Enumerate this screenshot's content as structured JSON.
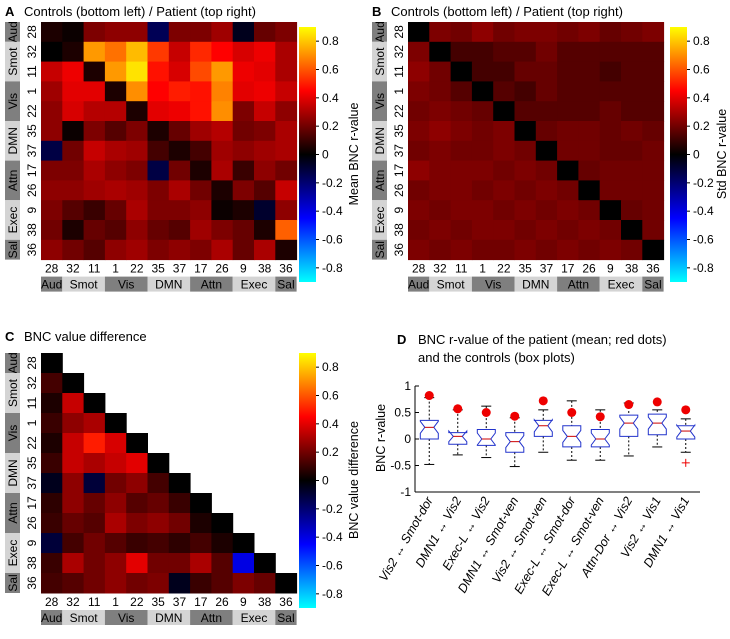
{
  "chart_data": [
    {
      "type": "heatmap",
      "panel_label": "A",
      "title": "Controls (bottom left) / Patient (top right)",
      "colorbar_label": "Mean BNC r-value",
      "colorbar_ticks": [
        "0.8",
        "0.6",
        "0.4",
        "0.2",
        "0",
        "-0.2",
        "-0.4",
        "-0.6",
        "-0.8"
      ],
      "colorbar_range": [
        -0.9,
        0.9
      ],
      "rois": [
        "28",
        "32",
        "11",
        "1",
        "22",
        "35",
        "37",
        "17",
        "26",
        "9",
        "38",
        "36"
      ],
      "groups": [
        {
          "label": "Aud",
          "start": 0,
          "end": 0,
          "shade": "dark"
        },
        {
          "label": "Smot",
          "start": 1,
          "end": 2,
          "shade": "light"
        },
        {
          "label": "Vis",
          "start": 3,
          "end": 4,
          "shade": "dark"
        },
        {
          "label": "DMN",
          "start": 5,
          "end": 6,
          "shade": "light"
        },
        {
          "label": "Attn",
          "start": 7,
          "end": 8,
          "shade": "dark"
        },
        {
          "label": "Exec",
          "start": 9,
          "end": 10,
          "shade": "light"
        },
        {
          "label": "Sal",
          "start": 11,
          "end": 11,
          "shade": "dark"
        }
      ],
      "matrix": [
        [
          0.05,
          0.02,
          0.22,
          0.25,
          0.25,
          -0.15,
          0.22,
          0.22,
          0.28,
          -0.05,
          0.18,
          0.22
        ],
        [
          0.0,
          0.05,
          0.72,
          0.65,
          0.78,
          0.55,
          0.35,
          0.52,
          0.45,
          0.38,
          0.42,
          0.3
        ],
        [
          0.35,
          0.42,
          0.05,
          0.72,
          0.85,
          0.48,
          0.38,
          0.58,
          0.72,
          0.42,
          0.4,
          0.3
        ],
        [
          0.28,
          0.4,
          0.4,
          0.05,
          0.7,
          0.45,
          0.5,
          0.48,
          0.68,
          0.4,
          0.42,
          0.35
        ],
        [
          0.25,
          0.38,
          0.32,
          0.32,
          0.05,
          0.4,
          0.42,
          0.48,
          0.7,
          0.22,
          0.35,
          0.25
        ],
        [
          0.25,
          0.02,
          0.22,
          0.15,
          0.22,
          0.05,
          0.18,
          0.28,
          0.32,
          0.2,
          0.22,
          0.3
        ],
        [
          -0.12,
          0.2,
          0.35,
          0.3,
          0.28,
          0.12,
          0.05,
          0.12,
          0.28,
          0.25,
          0.28,
          0.3
        ],
        [
          0.22,
          0.22,
          0.3,
          0.25,
          0.22,
          -0.12,
          0.2,
          0.05,
          0.3,
          0.1,
          0.25,
          0.2
        ],
        [
          0.25,
          0.25,
          0.28,
          0.3,
          0.28,
          0.22,
          0.3,
          0.2,
          0.05,
          0.22,
          0.15,
          0.35
        ],
        [
          0.22,
          0.15,
          0.1,
          0.18,
          0.3,
          0.22,
          0.22,
          0.25,
          0.02,
          0.05,
          -0.08,
          0.25
        ],
        [
          0.2,
          0.05,
          0.18,
          0.15,
          0.25,
          0.18,
          0.15,
          0.28,
          0.22,
          0.18,
          0.05,
          0.62
        ],
        [
          0.25,
          0.2,
          0.15,
          0.25,
          0.28,
          0.22,
          0.25,
          0.22,
          0.3,
          0.18,
          0.3,
          0.05
        ]
      ]
    },
    {
      "type": "heatmap",
      "panel_label": "B",
      "title": "Controls (bottom left) / Patient (top right)",
      "colorbar_label": "Std BNC r-value",
      "colorbar_ticks": [
        "0.8",
        "0.6",
        "0.4",
        "0.2",
        "0",
        "-0.2",
        "-0.4",
        "-0.6",
        "-0.8"
      ],
      "colorbar_range": [
        -0.9,
        0.9
      ],
      "rois": [
        "28",
        "32",
        "11",
        "1",
        "22",
        "35",
        "37",
        "17",
        "26",
        "9",
        "38",
        "36"
      ],
      "groups": [
        {
          "label": "Aud",
          "start": 0,
          "end": 0,
          "shade": "dark"
        },
        {
          "label": "Smot",
          "start": 1,
          "end": 2,
          "shade": "light"
        },
        {
          "label": "Vis",
          "start": 3,
          "end": 4,
          "shade": "dark"
        },
        {
          "label": "DMN",
          "start": 5,
          "end": 6,
          "shade": "light"
        },
        {
          "label": "Attn",
          "start": 7,
          "end": 8,
          "shade": "dark"
        },
        {
          "label": "Exec",
          "start": 9,
          "end": 10,
          "shade": "light"
        },
        {
          "label": "Sal",
          "start": 11,
          "end": 11,
          "shade": "dark"
        }
      ],
      "matrix": [
        [
          0.0,
          0.22,
          0.2,
          0.25,
          0.2,
          0.22,
          0.22,
          0.2,
          0.22,
          0.18,
          0.2,
          0.22
        ],
        [
          0.22,
          0.0,
          0.12,
          0.12,
          0.15,
          0.15,
          0.2,
          0.15,
          0.15,
          0.15,
          0.15,
          0.15
        ],
        [
          0.25,
          0.2,
          0.0,
          0.12,
          0.12,
          0.18,
          0.18,
          0.15,
          0.15,
          0.12,
          0.15,
          0.15
        ],
        [
          0.22,
          0.2,
          0.15,
          0.0,
          0.15,
          0.12,
          0.18,
          0.15,
          0.15,
          0.15,
          0.15,
          0.15
        ],
        [
          0.2,
          0.22,
          0.2,
          0.18,
          0.0,
          0.15,
          0.15,
          0.15,
          0.15,
          0.18,
          0.15,
          0.15
        ],
        [
          0.22,
          0.25,
          0.22,
          0.2,
          0.22,
          0.0,
          0.18,
          0.2,
          0.2,
          0.18,
          0.2,
          0.18
        ],
        [
          0.2,
          0.22,
          0.2,
          0.2,
          0.22,
          0.2,
          0.0,
          0.2,
          0.2,
          0.18,
          0.18,
          0.2
        ],
        [
          0.25,
          0.22,
          0.22,
          0.22,
          0.2,
          0.22,
          0.2,
          0.0,
          0.18,
          0.2,
          0.2,
          0.2
        ],
        [
          0.2,
          0.22,
          0.22,
          0.2,
          0.22,
          0.2,
          0.22,
          0.2,
          0.0,
          0.2,
          0.2,
          0.2
        ],
        [
          0.22,
          0.2,
          0.22,
          0.22,
          0.2,
          0.22,
          0.2,
          0.22,
          0.2,
          0.0,
          0.18,
          0.2
        ],
        [
          0.2,
          0.22,
          0.2,
          0.22,
          0.22,
          0.2,
          0.22,
          0.2,
          0.22,
          0.2,
          0.0,
          0.2
        ],
        [
          0.22,
          0.2,
          0.22,
          0.2,
          0.2,
          0.22,
          0.2,
          0.22,
          0.2,
          0.22,
          0.2,
          0.0
        ]
      ]
    },
    {
      "type": "heatmap",
      "panel_label": "C",
      "title": "BNC value difference",
      "colorbar_label": "BNC value difference",
      "colorbar_ticks": [
        "0.8",
        "0.6",
        "0.4",
        "0.2",
        "0",
        "-0.2",
        "-0.4",
        "-0.6",
        "-0.8"
      ],
      "colorbar_range": [
        -0.9,
        0.9
      ],
      "rois": [
        "28",
        "32",
        "11",
        "1",
        "22",
        "35",
        "37",
        "17",
        "26",
        "9",
        "38",
        "36"
      ],
      "groups": [
        {
          "label": "Aud",
          "start": 0,
          "end": 0,
          "shade": "dark"
        },
        {
          "label": "Smot",
          "start": 1,
          "end": 2,
          "shade": "light"
        },
        {
          "label": "Vis",
          "start": 3,
          "end": 4,
          "shade": "dark"
        },
        {
          "label": "DMN",
          "start": 5,
          "end": 6,
          "shade": "light"
        },
        {
          "label": "Attn",
          "start": 7,
          "end": 8,
          "shade": "dark"
        },
        {
          "label": "Exec",
          "start": 9,
          "end": 10,
          "shade": "light"
        },
        {
          "label": "Sal",
          "start": 11,
          "end": 11,
          "shade": "dark"
        }
      ],
      "matrix": [
        [
          0.0
        ],
        [
          0.12,
          0.0
        ],
        [
          0.05,
          0.35,
          0.0
        ],
        [
          0.1,
          0.25,
          0.3,
          0.0
        ],
        [
          0.05,
          0.35,
          0.5,
          0.38,
          0.0
        ],
        [
          0.1,
          0.35,
          0.3,
          0.35,
          0.4,
          0.0
        ],
        [
          -0.05,
          0.25,
          -0.1,
          0.2,
          0.25,
          0.12,
          0.0
        ],
        [
          0.08,
          0.25,
          0.18,
          0.25,
          0.15,
          0.18,
          0.1,
          0.0
        ],
        [
          0.1,
          0.18,
          0.15,
          0.3,
          0.22,
          0.25,
          0.2,
          0.05,
          0.0
        ],
        [
          -0.1,
          0.12,
          0.2,
          0.15,
          0.1,
          0.12,
          0.08,
          0.12,
          0.05,
          0.0
        ],
        [
          0.1,
          0.3,
          0.2,
          0.25,
          0.4,
          0.2,
          0.2,
          0.3,
          0.15,
          -0.4,
          0.0
        ],
        [
          0.12,
          0.15,
          0.2,
          0.25,
          0.2,
          0.22,
          -0.05,
          0.1,
          0.15,
          0.22,
          0.18,
          0.0
        ]
      ]
    },
    {
      "type": "box",
      "panel_label": "D",
      "title_line1": "BNC r-value of the patient (mean; red dots)",
      "title_line2": "and the controls (box plots)",
      "ylabel": "BNC r-value",
      "ylim": [
        -1,
        1
      ],
      "yticks": [
        "1",
        "0.5",
        "0",
        "-0.5",
        "-1"
      ],
      "categories": [
        "Vis2 ↔ Smot-dor",
        "DMN1 ↔ Vis2",
        "Exec-L ↔ Vis2",
        "DMN1 ↔ Smot-ven",
        "Vis2 ↔ Smot-ven",
        "Exec-L ↔ Smot-dor",
        "Exec-L ↔ Smot-ven",
        "Attn-Dor ↔ Vis2",
        "Vis2 ↔ Vis1",
        "DMN1 ↔ Vis1"
      ],
      "boxes": [
        {
          "whislo": -0.48,
          "q1": 0.0,
          "med": 0.22,
          "q3": 0.35,
          "whishi": 0.78
        },
        {
          "whislo": -0.3,
          "q1": -0.1,
          "med": 0.05,
          "q3": 0.12,
          "whishi": 0.55
        },
        {
          "whislo": -0.35,
          "q1": -0.12,
          "med": 0.0,
          "q3": 0.18,
          "whishi": 0.62
        },
        {
          "whislo": -0.52,
          "q1": -0.25,
          "med": -0.05,
          "q3": 0.12,
          "whishi": 0.4
        },
        {
          "whislo": -0.25,
          "q1": 0.05,
          "med": 0.25,
          "q3": 0.35,
          "whishi": 0.55
        },
        {
          "whislo": -0.4,
          "q1": -0.15,
          "med": 0.05,
          "q3": 0.25,
          "whishi": 0.72
        },
        {
          "whislo": -0.4,
          "q1": -0.15,
          "med": 0.0,
          "q3": 0.18,
          "whishi": 0.55
        },
        {
          "whislo": -0.32,
          "q1": 0.05,
          "med": 0.3,
          "q3": 0.45,
          "whishi": 0.68
        },
        {
          "whislo": -0.15,
          "q1": 0.08,
          "med": 0.3,
          "q3": 0.47,
          "whishi": 0.55
        },
        {
          "whislo": -0.25,
          "q1": 0.0,
          "med": 0.15,
          "q3": 0.25,
          "whishi": 0.38
        }
      ],
      "patient_values": [
        0.82,
        0.57,
        0.5,
        0.43,
        0.72,
        0.5,
        0.42,
        0.65,
        0.7,
        0.55
      ],
      "outliers": [
        {
          "index": 9,
          "value": -0.45
        }
      ]
    }
  ]
}
